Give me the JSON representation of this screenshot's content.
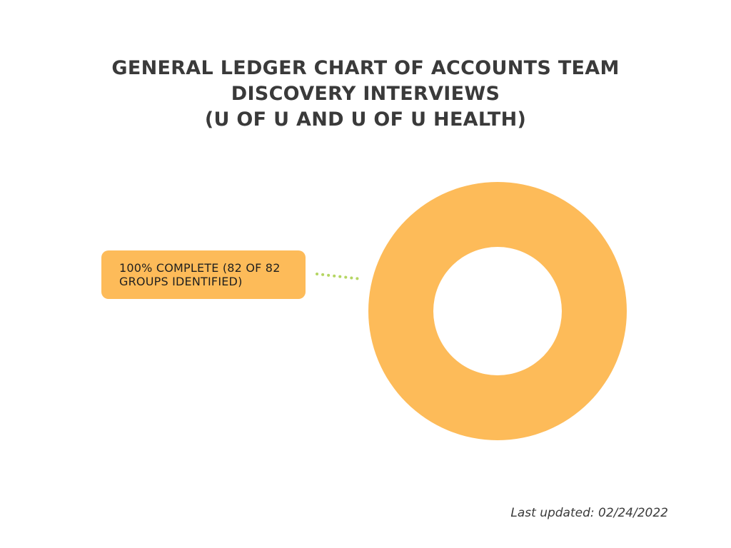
{
  "chart_data": {
    "type": "pie",
    "title_lines": [
      "GENERAL LEDGER CHART OF ACCOUNTS TEAM",
      "DISCOVERY INTERVIEWS",
      "(U OF U AND U OF U HEALTH)"
    ],
    "slices": [
      {
        "label": "100% COMPLETE (82 OF 82 GROUPS IDENTIFIED)",
        "value": 82,
        "percent": 100,
        "color": "#fdbb59"
      }
    ],
    "total": 82,
    "donut": true,
    "connector_color": "#b5d663"
  },
  "footer": {
    "last_updated": "Last updated: 02/24/2022"
  }
}
